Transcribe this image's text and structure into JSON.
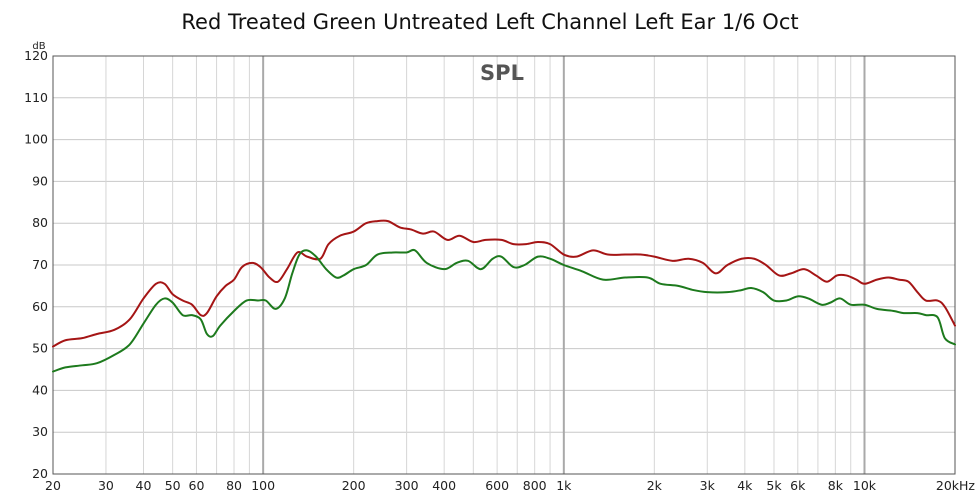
{
  "chart_data": {
    "type": "line",
    "title": "Red Treated Green Untreated Left Channel Left Ear 1/6 Oct",
    "plot_label": "SPL",
    "ylabel": "dB",
    "xscale": "log",
    "xlim": [
      20,
      20000
    ],
    "ylim": [
      20,
      120
    ],
    "yticks": [
      20,
      30,
      40,
      50,
      60,
      70,
      80,
      90,
      100,
      110,
      120
    ],
    "xticks": [
      {
        "v": 20,
        "label": "20"
      },
      {
        "v": 30,
        "label": "30"
      },
      {
        "v": 40,
        "label": "40"
      },
      {
        "v": 50,
        "label": "50"
      },
      {
        "v": 60,
        "label": "60"
      },
      {
        "v": 80,
        "label": "80"
      },
      {
        "v": 100,
        "label": "100"
      },
      {
        "v": 200,
        "label": "200"
      },
      {
        "v": 300,
        "label": "300"
      },
      {
        "v": 400,
        "label": "400"
      },
      {
        "v": 600,
        "label": "600"
      },
      {
        "v": 800,
        "label": "800"
      },
      {
        "v": 1000,
        "label": "1k"
      },
      {
        "v": 2000,
        "label": "2k"
      },
      {
        "v": 3000,
        "label": "3k"
      },
      {
        "v": 4000,
        "label": "4k"
      },
      {
        "v": 5000,
        "label": "5k"
      },
      {
        "v": 6000,
        "label": "6k"
      },
      {
        "v": 8000,
        "label": "8k"
      },
      {
        "v": 10000,
        "label": "10k"
      },
      {
        "v": 20000,
        "label": "20kHz"
      }
    ],
    "grid": true,
    "legend": "none",
    "series": [
      {
        "color": "#a51515",
        "points": [
          [
            20,
            50.5
          ],
          [
            22,
            52
          ],
          [
            25,
            52.5
          ],
          [
            28,
            53.5
          ],
          [
            32,
            54.5
          ],
          [
            36,
            57
          ],
          [
            40,
            62
          ],
          [
            44,
            65.5
          ],
          [
            47,
            65.5
          ],
          [
            50,
            63
          ],
          [
            54,
            61.5
          ],
          [
            58,
            60.5
          ],
          [
            62,
            58
          ],
          [
            65,
            58.5
          ],
          [
            70,
            62.5
          ],
          [
            75,
            65
          ],
          [
            80,
            66.5
          ],
          [
            85,
            69.5
          ],
          [
            92,
            70.5
          ],
          [
            98,
            69.5
          ],
          [
            105,
            67
          ],
          [
            112,
            66
          ],
          [
            120,
            69
          ],
          [
            130,
            73
          ],
          [
            140,
            72
          ],
          [
            155,
            71.5
          ],
          [
            165,
            75
          ],
          [
            180,
            77
          ],
          [
            200,
            78
          ],
          [
            220,
            80
          ],
          [
            240,
            80.5
          ],
          [
            260,
            80.5
          ],
          [
            285,
            79
          ],
          [
            310,
            78.5
          ],
          [
            340,
            77.5
          ],
          [
            370,
            78
          ],
          [
            410,
            76
          ],
          [
            450,
            77
          ],
          [
            500,
            75.5
          ],
          [
            550,
            76
          ],
          [
            620,
            76
          ],
          [
            680,
            75
          ],
          [
            750,
            75
          ],
          [
            820,
            75.5
          ],
          [
            900,
            75
          ],
          [
            1000,
            72.5
          ],
          [
            1100,
            72
          ],
          [
            1250,
            73.5
          ],
          [
            1400,
            72.5
          ],
          [
            1600,
            72.5
          ],
          [
            1800,
            72.5
          ],
          [
            2000,
            72
          ],
          [
            2300,
            71
          ],
          [
            2600,
            71.5
          ],
          [
            2900,
            70.5
          ],
          [
            3200,
            68
          ],
          [
            3500,
            70
          ],
          [
            3900,
            71.5
          ],
          [
            4300,
            71.5
          ],
          [
            4700,
            70
          ],
          [
            5200,
            67.5
          ],
          [
            5700,
            68
          ],
          [
            6300,
            69
          ],
          [
            6900,
            67.5
          ],
          [
            7500,
            66
          ],
          [
            8100,
            67.5
          ],
          [
            8700,
            67.5
          ],
          [
            9400,
            66.5
          ],
          [
            10000,
            65.5
          ],
          [
            11000,
            66.5
          ],
          [
            12000,
            67
          ],
          [
            13000,
            66.5
          ],
          [
            14000,
            66
          ],
          [
            15000,
            63.5
          ],
          [
            16000,
            61.5
          ],
          [
            17500,
            61.5
          ],
          [
            18500,
            60
          ],
          [
            20000,
            55.5
          ]
        ]
      },
      {
        "color": "#1d7a1d",
        "points": [
          [
            20,
            44.5
          ],
          [
            22,
            45.5
          ],
          [
            25,
            46
          ],
          [
            28,
            46.5
          ],
          [
            32,
            48.5
          ],
          [
            36,
            51
          ],
          [
            40,
            56
          ],
          [
            44,
            60.5
          ],
          [
            47,
            62
          ],
          [
            50,
            61
          ],
          [
            54,
            58
          ],
          [
            58,
            58
          ],
          [
            62,
            57
          ],
          [
            65,
            53.5
          ],
          [
            68,
            53
          ],
          [
            72,
            55.5
          ],
          [
            80,
            59
          ],
          [
            88,
            61.5
          ],
          [
            96,
            61.5
          ],
          [
            102,
            61.5
          ],
          [
            110,
            59.5
          ],
          [
            118,
            62
          ],
          [
            125,
            68
          ],
          [
            132,
            72.5
          ],
          [
            140,
            73.5
          ],
          [
            150,
            72
          ],
          [
            162,
            69
          ],
          [
            175,
            67
          ],
          [
            185,
            67.5
          ],
          [
            200,
            69
          ],
          [
            220,
            70
          ],
          [
            240,
            72.5
          ],
          [
            270,
            73
          ],
          [
            300,
            73
          ],
          [
            320,
            73.5
          ],
          [
            350,
            70.5
          ],
          [
            400,
            69
          ],
          [
            440,
            70.5
          ],
          [
            480,
            71
          ],
          [
            530,
            69
          ],
          [
            580,
            71.5
          ],
          [
            620,
            72
          ],
          [
            680,
            69.5
          ],
          [
            740,
            70
          ],
          [
            820,
            72
          ],
          [
            900,
            71.5
          ],
          [
            1000,
            70
          ],
          [
            1150,
            68.5
          ],
          [
            1350,
            66.5
          ],
          [
            1600,
            67
          ],
          [
            1900,
            67
          ],
          [
            2100,
            65.5
          ],
          [
            2400,
            65
          ],
          [
            2700,
            64
          ],
          [
            3000,
            63.5
          ],
          [
            3500,
            63.5
          ],
          [
            3900,
            64
          ],
          [
            4200,
            64.5
          ],
          [
            4600,
            63.5
          ],
          [
            5000,
            61.5
          ],
          [
            5500,
            61.5
          ],
          [
            6000,
            62.5
          ],
          [
            6500,
            62
          ],
          [
            7200,
            60.5
          ],
          [
            7700,
            61
          ],
          [
            8300,
            62
          ],
          [
            9000,
            60.5
          ],
          [
            10000,
            60.5
          ],
          [
            11000,
            59.5
          ],
          [
            12500,
            59
          ],
          [
            13500,
            58.5
          ],
          [
            15000,
            58.5
          ],
          [
            16000,
            58
          ],
          [
            17500,
            57.5
          ],
          [
            18500,
            52.5
          ],
          [
            20000,
            51
          ]
        ]
      }
    ]
  }
}
